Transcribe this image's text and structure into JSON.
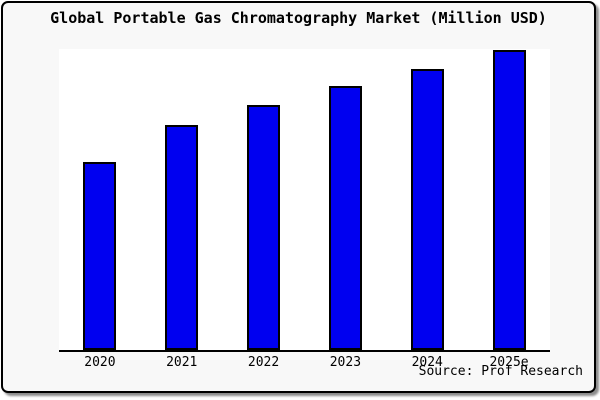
{
  "chart_data": {
    "type": "bar",
    "title": "Global Portable Gas Chromatography Market (Million USD)",
    "categories": [
      "2020",
      "2021",
      "2022",
      "2023",
      "2024",
      "2025e"
    ],
    "values": [
      188,
      225,
      245,
      264,
      281,
      300
    ],
    "values_unit": "relative bar heights in px (chart displays no y-axis scale or value labels)",
    "xlabel": "",
    "ylabel": "",
    "ylim": [
      0,
      300
    ],
    "y_axis_visible": false,
    "grid": false,
    "legend": false,
    "bar_color": "#0000F0",
    "bar_border_color": "#000000",
    "plot_background": "#FFFFFF",
    "page_background": "#F8F8F8",
    "axis_color": "#000000"
  },
  "source": {
    "label": "Source: Prof Research"
  }
}
